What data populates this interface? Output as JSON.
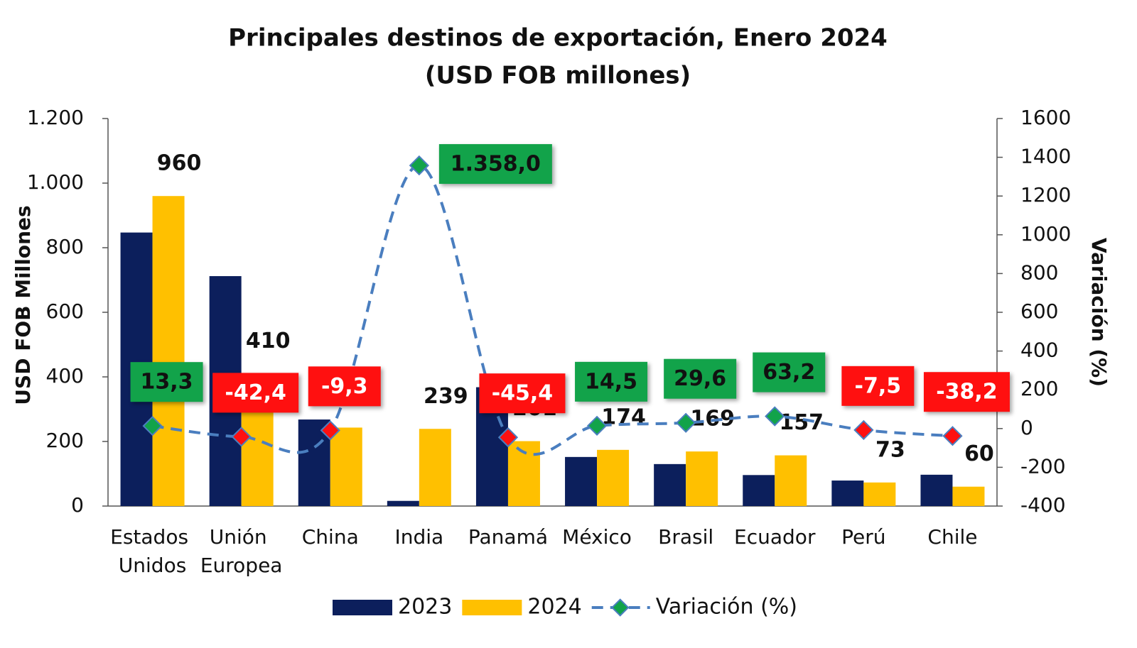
{
  "chart_data": {
    "type": "bar_line",
    "title": "Principales destinos de exportación, Enero 2024",
    "subtitle": "(USD FOB millones)",
    "ylabel": "USD FOB Millones",
    "y2label": "Variación (%)",
    "categories": [
      "Estados Unidos",
      "Unión Europea",
      "China",
      "India",
      "Panamá",
      "México",
      "Brasil",
      "Ecuador",
      "Perú",
      "Chile"
    ],
    "series": [
      {
        "name": "2023",
        "color": "#0c1f5c",
        "type": "bar",
        "values": [
          847,
          712,
          268,
          16,
          368,
          152,
          130,
          96,
          79,
          97
        ]
      },
      {
        "name": "2024",
        "color": "#ffc000",
        "type": "bar",
        "values": [
          960,
          410,
          243,
          239,
          201,
          174,
          169,
          157,
          73,
          60
        ],
        "labels": true
      },
      {
        "name": "Variación (%)",
        "color": "#4a7ebf",
        "type": "line",
        "axis": "y2",
        "values": [
          13.3,
          -42.4,
          -9.3,
          1358.0,
          -45.4,
          14.5,
          29.6,
          63.2,
          -7.5,
          -38.2
        ],
        "value_labels": [
          "13,3",
          "-42,4",
          "-9,3",
          "1.358,0",
          "-45,4",
          "14,5",
          "29,6",
          "63,2",
          "-7,5",
          "-38,2"
        ],
        "positive_color": "#12a34a",
        "negative_color": "#ff1010"
      }
    ],
    "ylim": [
      0,
      1200
    ],
    "yticks": [
      0,
      200,
      400,
      600,
      800,
      {
        "value": 1000,
        "label": "1.000"
      },
      {
        "value": 1200,
        "label": "1.200"
      }
    ],
    "y2lim": [
      -400,
      1600
    ],
    "y2ticks": [
      -400,
      -200,
      0,
      200,
      400,
      600,
      800,
      1000,
      1200,
      1400,
      1600
    ],
    "legend": "bottom"
  }
}
